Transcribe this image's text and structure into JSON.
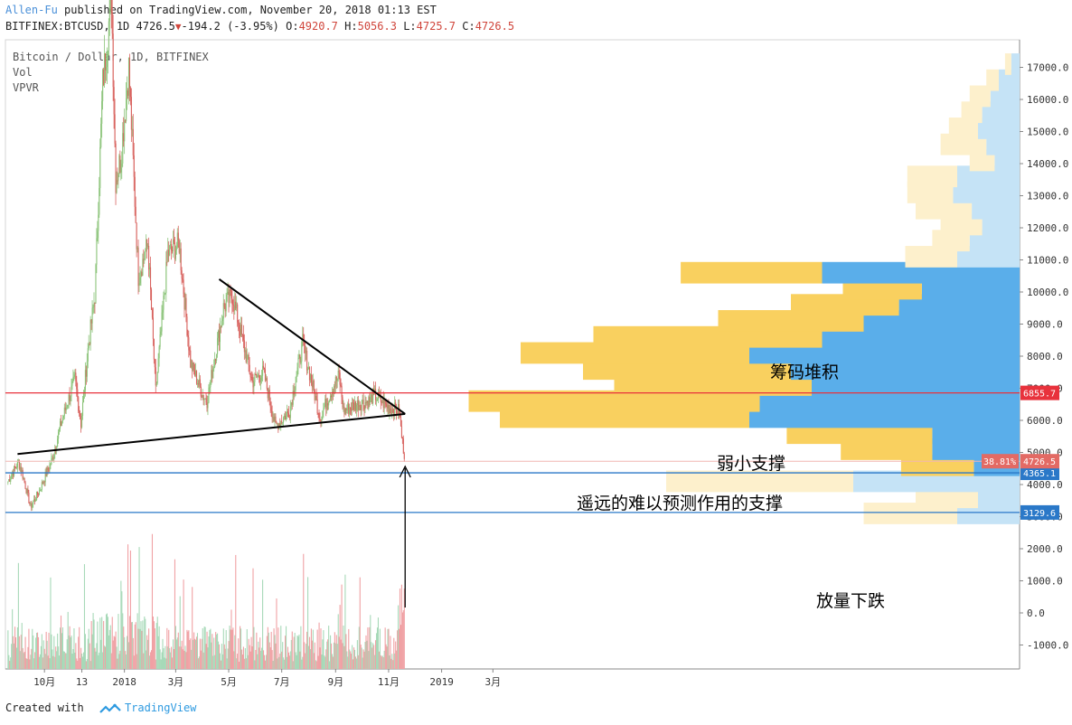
{
  "header": {
    "author": "Allen-Fu",
    "published_text": "published on TradingView.com, November 20, 2018 01:13 EST",
    "symbol": "BITFINEX:BTCUSD",
    "interval": "1D",
    "last": "4726.5",
    "change": "-194.2 (-3.95%)",
    "o_label": "O:",
    "o_val": "4920.7",
    "h_label": "H:",
    "h_val": "5056.3",
    "l_label": "L:",
    "l_val": "4725.7",
    "c_label": "C:",
    "c_val": "4726.5"
  },
  "legend": {
    "line1": "Bitcoin / Dollar, 1D, BITFINEX",
    "line2": "Vol",
    "line3": "VPVR"
  },
  "footer": {
    "created_with": "Created with",
    "brand": "TradingView"
  },
  "colors": {
    "up": "#8cc47a",
    "down": "#d8625e",
    "vol_up": "#a7d9b8",
    "vol_down": "#f0a1a4",
    "vpvr_yellow": "#f9d05f",
    "vpvr_yellow_light": "#fdf0cc",
    "vpvr_blue": "#5aaeea",
    "vpvr_blue_light": "#c5e3f6",
    "red_line": "#e8323c",
    "blue_line": "#2a78c8"
  },
  "chart_data": {
    "type": "candlestick",
    "title": "Bitcoin / Dollar, 1D, BITFINEX",
    "y_axis": {
      "ticks": [
        "-1000.0",
        "0.0",
        "1000.0",
        "2000.0",
        "3000.0",
        "4000.0",
        "5000.0",
        "6000.0",
        "7000.0",
        "8000.0",
        "9000.0",
        "10000.0",
        "11000.0",
        "12000.0",
        "13000.0",
        "14000.0",
        "15000.0",
        "16000.0",
        "17000.0"
      ],
      "tick_values": [
        -1000,
        0,
        1000,
        2000,
        3000,
        4000,
        5000,
        6000,
        7000,
        8000,
        9000,
        10000,
        11000,
        12000,
        13000,
        14000,
        15000,
        16000,
        17000
      ]
    },
    "x_axis": {
      "labels": [
        "10月",
        "13",
        "2018",
        "3月",
        "5月",
        "7月",
        "9月",
        "11月",
        "2019",
        "3月"
      ]
    },
    "price_path": [
      [
        "2017-08-20",
        4100
      ],
      [
        "2017-09-01",
        4700
      ],
      [
        "2017-09-05",
        4400
      ],
      [
        "2017-09-15",
        3300
      ],
      [
        "2017-09-25",
        3800
      ],
      [
        "2017-10-10",
        4800
      ],
      [
        "2017-10-20",
        5900
      ],
      [
        "2017-11-05",
        7300
      ],
      [
        "2017-11-12",
        5900
      ],
      [
        "2017-11-20",
        8200
      ],
      [
        "2017-11-28",
        9900
      ],
      [
        "2017-12-07",
        16500
      ],
      [
        "2017-12-17",
        19200
      ],
      [
        "2017-12-22",
        13500
      ],
      [
        "2017-12-28",
        14200
      ],
      [
        "2018-01-06",
        17000
      ],
      [
        "2018-01-17",
        10500
      ],
      [
        "2018-01-28",
        11500
      ],
      [
        "2018-02-06",
        6900
      ],
      [
        "2018-02-20",
        11200
      ],
      [
        "2018-03-05",
        11500
      ],
      [
        "2018-03-18",
        7800
      ],
      [
        "2018-04-01",
        6800
      ],
      [
        "2018-04-06",
        6600
      ],
      [
        "2018-04-25",
        9500
      ],
      [
        "2018-05-05",
        9900
      ],
      [
        "2018-05-28",
        7200
      ],
      [
        "2018-06-10",
        7500
      ],
      [
        "2018-06-24",
        5800
      ],
      [
        "2018-07-10",
        6300
      ],
      [
        "2018-07-25",
        8400
      ],
      [
        "2018-08-14",
        6100
      ],
      [
        "2018-08-30",
        7100
      ],
      [
        "2018-09-05",
        7400
      ],
      [
        "2018-09-10",
        6300
      ],
      [
        "2018-09-25",
        6500
      ],
      [
        "2018-10-10",
        6600
      ],
      [
        "2018-10-15",
        6800
      ],
      [
        "2018-11-01",
        6400
      ],
      [
        "2018-11-13",
        6300
      ],
      [
        "2018-11-16",
        5500
      ],
      [
        "2018-11-20",
        4726.5
      ]
    ],
    "horizontal_lines": [
      {
        "value": 6855.7,
        "label": "6855.7",
        "color": "#e8323c"
      },
      {
        "value": 4365.1,
        "label": "4365.1",
        "color": "#2a78c8"
      },
      {
        "value": 3129.6,
        "label": "3129.6",
        "color": "#2a78c8"
      }
    ],
    "last_price": {
      "value": 4726.5,
      "label": "4726.5",
      "pct_label": "38.81%"
    },
    "annotations": [
      {
        "text": "筹码堆积"
      },
      {
        "text": "弱小支撑"
      },
      {
        "text": "遥远的难以预测作用的支撑"
      },
      {
        "text": "放量下跌"
      }
    ],
    "vpvr": [
      {
        "price": 3100,
        "up": 45,
        "down": 30
      },
      {
        "price": 3600,
        "up": 30,
        "down": 20
      },
      {
        "price": 4100,
        "up": 90,
        "down": 80
      },
      {
        "price": 4600,
        "up": 35,
        "down": 22
      },
      {
        "price": 5100,
        "up": 44,
        "down": 42
      },
      {
        "price": 5600,
        "up": 70,
        "down": 42
      },
      {
        "price": 6100,
        "up": 120,
        "down": 130
      },
      {
        "price": 6600,
        "up": 140,
        "down": 125
      },
      {
        "price": 7100,
        "up": 95,
        "down": 100
      },
      {
        "price": 7600,
        "up": 100,
        "down": 110
      },
      {
        "price": 8100,
        "up": 110,
        "down": 130
      },
      {
        "price": 8600,
        "up": 110,
        "down": 95
      },
      {
        "price": 9100,
        "up": 70,
        "down": 75
      },
      {
        "price": 9600,
        "up": 52,
        "down": 58
      },
      {
        "price": 10100,
        "up": 38,
        "down": 47
      },
      {
        "price": 10600,
        "up": 68,
        "down": 95
      },
      {
        "price": 11100,
        "up": 25,
        "down": 30
      },
      {
        "price": 11600,
        "up": 18,
        "down": 24
      },
      {
        "price": 12100,
        "up": 20,
        "down": 18
      },
      {
        "price": 12600,
        "up": 27,
        "down": 23
      },
      {
        "price": 13100,
        "up": 22,
        "down": 32
      },
      {
        "price": 13600,
        "up": 24,
        "down": 30
      },
      {
        "price": 14100,
        "up": 12,
        "down": 12
      },
      {
        "price": 14600,
        "up": 22,
        "down": 16
      },
      {
        "price": 15100,
        "up": 14,
        "down": 20
      },
      {
        "price": 15600,
        "up": 10,
        "down": 18
      },
      {
        "price": 16100,
        "up": 10,
        "down": 14
      },
      {
        "price": 16600,
        "up": 6,
        "down": 10
      },
      {
        "price": 17100,
        "up": 3,
        "down": 4
      }
    ]
  }
}
